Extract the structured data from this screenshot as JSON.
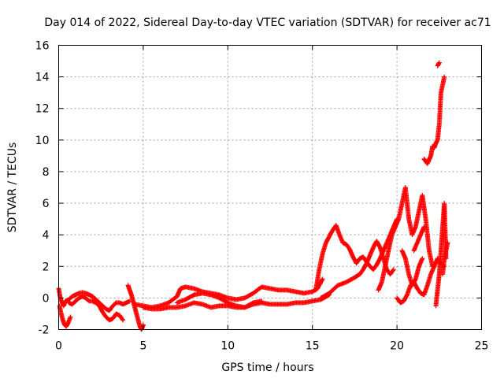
{
  "chart_data": {
    "type": "scatter",
    "title": "Day 014 of 2022, Sidereal Day-to-day VTEC variation (SDTVAR) for receiver ac71",
    "xlabel": "GPS time / hours",
    "ylabel": "SDTVAR / TECUs",
    "xlim": [
      0,
      25
    ],
    "ylim": [
      -2,
      16
    ],
    "xticks": [
      0,
      5,
      10,
      15,
      20,
      25
    ],
    "yticks": [
      -2,
      0,
      2,
      4,
      6,
      8,
      10,
      12,
      14,
      16
    ],
    "xtick_labels": [
      "0",
      "5",
      "10",
      "15",
      "20",
      "25"
    ],
    "ytick_labels": [
      "-2",
      "0",
      "2",
      "4",
      "6",
      "8",
      "10",
      "12",
      "14",
      "16"
    ],
    "grid": true,
    "marker": "+",
    "color": "#ff0000",
    "series": [
      {
        "name": "SDTVAR",
        "approximate": true,
        "tracks": [
          {
            "x": [
              0.0,
              0.1,
              0.2,
              0.3,
              0.4,
              0.6,
              0.8,
              1.0,
              1.2,
              1.4,
              1.6,
              1.8,
              2.0,
              2.2,
              2.4,
              2.6,
              2.8,
              3.0,
              3.2,
              3.4,
              3.6,
              3.8,
              4.0,
              4.2
            ],
            "y": [
              0.6,
              0.0,
              -0.3,
              -0.5,
              -0.2,
              -0.1,
              0.1,
              0.2,
              0.3,
              0.35,
              0.3,
              0.2,
              0.1,
              -0.1,
              -0.3,
              -0.5,
              -0.7,
              -0.8,
              -0.5,
              -0.3,
              -0.3,
              -0.4,
              -0.3,
              -0.2
            ]
          },
          {
            "x": [
              0.05,
              0.15,
              0.25,
              0.35,
              0.45,
              0.55,
              0.7
            ],
            "y": [
              -0.5,
              -1.0,
              -1.4,
              -1.7,
              -1.8,
              -1.6,
              -1.2
            ]
          },
          {
            "x": [
              0.6,
              0.8,
              1.0,
              1.2,
              1.4,
              1.6,
              1.8,
              2.0,
              2.2,
              2.4,
              2.6,
              2.8,
              3.0,
              3.2,
              3.4,
              3.6,
              3.8
            ],
            "y": [
              -0.3,
              -0.4,
              -0.2,
              0.0,
              0.1,
              0.0,
              -0.2,
              -0.2,
              -0.3,
              -0.5,
              -0.9,
              -1.2,
              -1.4,
              -1.3,
              -1.0,
              -1.1,
              -1.4
            ]
          },
          {
            "x": [
              4.1,
              4.2,
              4.3,
              4.4,
              4.5,
              4.6,
              4.7,
              4.8,
              4.9,
              5.0
            ],
            "y": [
              0.8,
              0.5,
              0.2,
              -0.2,
              -0.6,
              -1.0,
              -1.4,
              -1.8,
              -2.0,
              -1.7
            ]
          },
          {
            "x": [
              4.5,
              5.0,
              5.5,
              6.0,
              6.5,
              7.0,
              7.2,
              7.5,
              8.0,
              8.5,
              9.0,
              9.5,
              10.0,
              10.5,
              11.0,
              11.5,
              12.0,
              12.5,
              13.0,
              13.5,
              14.0,
              14.5,
              15.0,
              15.3,
              15.6
            ],
            "y": [
              -0.4,
              -0.5,
              -0.6,
              -0.5,
              -0.3,
              0.1,
              0.6,
              0.7,
              0.6,
              0.4,
              0.3,
              0.2,
              0.0,
              -0.1,
              0.0,
              0.3,
              0.7,
              0.6,
              0.5,
              0.5,
              0.4,
              0.3,
              0.4,
              0.6,
              1.2
            ]
          },
          {
            "x": [
              5.0,
              5.5,
              6.0,
              6.5,
              7.0,
              7.5,
              8.0,
              8.5,
              9.0,
              9.5,
              10.0,
              10.5,
              11.0,
              11.5,
              12.0,
              12.5,
              13.0,
              13.5,
              14.0,
              14.5,
              15.0,
              15.5,
              16.0
            ],
            "y": [
              -0.6,
              -0.7,
              -0.7,
              -0.6,
              -0.6,
              -0.5,
              -0.3,
              -0.4,
              -0.6,
              -0.5,
              -0.5,
              -0.6,
              -0.6,
              -0.4,
              -0.3,
              -0.4,
              -0.4,
              -0.4,
              -0.3,
              -0.3,
              -0.2,
              -0.1,
              0.2
            ]
          },
          {
            "x": [
              7.0,
              7.5,
              8.0,
              8.5,
              9.0,
              9.5,
              10.0,
              10.5,
              11.0,
              11.5,
              12.0
            ],
            "y": [
              -0.3,
              -0.1,
              0.2,
              0.3,
              0.2,
              0.0,
              -0.3,
              -0.5,
              -0.6,
              -0.3,
              -0.2
            ]
          },
          {
            "x": [
              15.2,
              15.4,
              15.6,
              15.8,
              16.0,
              16.2,
              16.4,
              16.6,
              16.8,
              17.0,
              17.2,
              17.4,
              17.6,
              17.8,
              18.0,
              18.2,
              18.4,
              18.6,
              18.8,
              19.0,
              19.2,
              19.4,
              19.6,
              19.8,
              20.0
            ],
            "y": [
              0.5,
              1.8,
              2.8,
              3.5,
              3.9,
              4.3,
              4.6,
              4.0,
              3.5,
              3.4,
              3.1,
              2.6,
              2.2,
              2.5,
              2.6,
              2.3,
              2.0,
              1.8,
              2.1,
              2.5,
              3.0,
              3.5,
              4.0,
              4.5,
              5.0
            ]
          },
          {
            "x": [
              15.5,
              16.0,
              16.5,
              17.0,
              17.5,
              17.8,
              18.0,
              18.2,
              18.4,
              18.6,
              18.8,
              19.0,
              19.2,
              19.4,
              19.6,
              19.8
            ],
            "y": [
              0.0,
              0.3,
              0.8,
              1.0,
              1.3,
              1.5,
              1.8,
              2.2,
              2.7,
              3.2,
              3.6,
              3.2,
              2.5,
              1.8,
              1.5,
              1.8
            ]
          },
          {
            "x": [
              18.9,
              19.1,
              19.3,
              19.5,
              19.7,
              19.9,
              20.1,
              20.3,
              20.5,
              20.7,
              20.9,
              21.1,
              21.3,
              21.5,
              21.7,
              21.9,
              22.1
            ],
            "y": [
              0.5,
              1.0,
              2.0,
              3.0,
              4.0,
              4.5,
              5.0,
              6.0,
              7.0,
              5.0,
              4.0,
              4.5,
              5.5,
              6.5,
              5.0,
              3.0,
              2.0
            ]
          },
          {
            "x": [
              20.0,
              20.2,
              20.4,
              20.6,
              20.8,
              21.0,
              21.2,
              21.4,
              21.6,
              21.8,
              22.0,
              22.2,
              22.4,
              22.6,
              22.8
            ],
            "y": [
              0.0,
              -0.3,
              -0.2,
              0.2,
              0.8,
              1.0,
              0.6,
              0.3,
              0.2,
              0.8,
              1.5,
              2.0,
              2.5,
              2.2,
              2.0
            ]
          },
          {
            "x": [
              20.3,
              20.5,
              20.7,
              20.9,
              21.1,
              21.3,
              21.5
            ],
            "y": [
              3.0,
              2.5,
              1.5,
              0.8,
              1.2,
              2.0,
              2.5
            ]
          },
          {
            "x": [
              21.0,
              21.2,
              21.4,
              21.6
            ],
            "y": [
              3.0,
              3.5,
              4.0,
              4.5
            ]
          },
          {
            "x": [
              22.3,
              22.4,
              22.5,
              22.6,
              22.7,
              22.8,
              22.9
            ],
            "y": [
              -0.5,
              0.5,
              1.5,
              3.0,
              4.5,
              6.0,
              2.5
            ]
          },
          {
            "x": [
              22.7,
              22.8,
              22.9,
              23.0
            ],
            "y": [
              1.5,
              2.5,
              3.0,
              3.5
            ]
          },
          {
            "x": [
              21.6,
              21.8,
              22.0,
              22.1,
              22.2,
              22.3,
              22.4,
              22.5,
              22.6,
              22.7,
              22.8
            ],
            "y": [
              8.8,
              8.5,
              9.0,
              9.6,
              9.5,
              9.8,
              10.0,
              11.0,
              13.0,
              13.5,
              14.0
            ]
          },
          {
            "x": [
              22.4,
              22.5
            ],
            "y": [
              14.7,
              14.9
            ]
          }
        ]
      }
    ]
  }
}
